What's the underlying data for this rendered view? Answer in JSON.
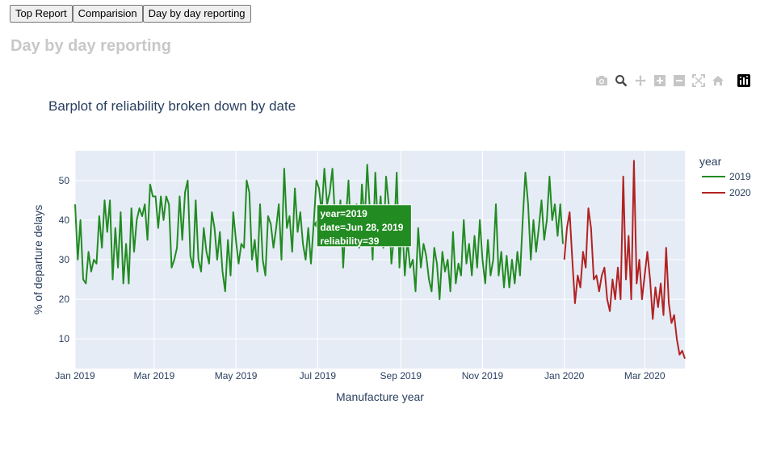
{
  "tabs": [
    {
      "label": "Top Report"
    },
    {
      "label": "Comparision"
    },
    {
      "label": "Day by day reporting"
    }
  ],
  "page_title": "Day by day reporting",
  "modebar": [
    {
      "icon": "camera-icon",
      "title": "Download plot as a png"
    },
    {
      "icon": "zoom-icon",
      "title": "Zoom"
    },
    {
      "icon": "pan-icon",
      "title": "Pan"
    },
    {
      "icon": "zoom-in-icon",
      "title": "Zoom in"
    },
    {
      "icon": "zoom-out-icon",
      "title": "Zoom out"
    },
    {
      "icon": "autoscale-icon",
      "title": "Autoscale"
    },
    {
      "icon": "reset-axes-icon",
      "title": "Reset axes"
    },
    {
      "icon": "plotly-logo-icon",
      "title": "Produced with Plotly"
    }
  ],
  "colors": {
    "plot_bg": "#e5ecf6",
    "grid": "#ffffff",
    "text": "#2a3f5f",
    "series_2019": "#228b22",
    "series_2020": "#b22222"
  },
  "chart_data": {
    "type": "line",
    "title": "Barplot of reliability broken down by date",
    "xlabel": "Manufacture year",
    "ylabel": "% of departure delays",
    "xlim": [
      "2019-01-01",
      "2020-03-31"
    ],
    "ylim": [
      2.5,
      57.5
    ],
    "x_ticks": [
      "Jan 2019",
      "Mar 2019",
      "May 2019",
      "Jul 2019",
      "Sep 2019",
      "Nov 2019",
      "Jan 2020",
      "Mar 2020"
    ],
    "y_ticks": [
      10,
      20,
      30,
      40,
      50
    ],
    "grid": true,
    "legend": {
      "title": "year",
      "position": "right"
    },
    "series": [
      {
        "name": "2019",
        "color": "#228b22",
        "points": [
          [
            "2019-01-01",
            44
          ],
          [
            "2019-01-03",
            30
          ],
          [
            "2019-01-05",
            40
          ],
          [
            "2019-01-07",
            25
          ],
          [
            "2019-01-09",
            24
          ],
          [
            "2019-01-11",
            32
          ],
          [
            "2019-01-13",
            27
          ],
          [
            "2019-01-15",
            30
          ],
          [
            "2019-01-17",
            29
          ],
          [
            "2019-01-19",
            41
          ],
          [
            "2019-01-21",
            33
          ],
          [
            "2019-01-23",
            45
          ],
          [
            "2019-01-25",
            37
          ],
          [
            "2019-01-27",
            45
          ],
          [
            "2019-01-29",
            25
          ],
          [
            "2019-01-31",
            38
          ],
          [
            "2019-02-02",
            28
          ],
          [
            "2019-02-04",
            42
          ],
          [
            "2019-02-06",
            24
          ],
          [
            "2019-02-08",
            34
          ],
          [
            "2019-02-10",
            24
          ],
          [
            "2019-02-12",
            43
          ],
          [
            "2019-02-14",
            32
          ],
          [
            "2019-02-16",
            40
          ],
          [
            "2019-02-18",
            43
          ],
          [
            "2019-02-20",
            41
          ],
          [
            "2019-02-22",
            44
          ],
          [
            "2019-02-24",
            35
          ],
          [
            "2019-02-26",
            49
          ],
          [
            "2019-02-28",
            46
          ],
          [
            "2019-03-02",
            46
          ],
          [
            "2019-03-04",
            38
          ],
          [
            "2019-03-06",
            46
          ],
          [
            "2019-03-08",
            40
          ],
          [
            "2019-03-10",
            46
          ],
          [
            "2019-03-12",
            44
          ],
          [
            "2019-03-14",
            28
          ],
          [
            "2019-03-16",
            30
          ],
          [
            "2019-03-18",
            33
          ],
          [
            "2019-03-20",
            46
          ],
          [
            "2019-03-22",
            35
          ],
          [
            "2019-03-24",
            47
          ],
          [
            "2019-03-26",
            50
          ],
          [
            "2019-03-28",
            31
          ],
          [
            "2019-03-30",
            28
          ],
          [
            "2019-04-01",
            45
          ],
          [
            "2019-04-03",
            30
          ],
          [
            "2019-04-05",
            27
          ],
          [
            "2019-04-07",
            38
          ],
          [
            "2019-04-09",
            32
          ],
          [
            "2019-04-11",
            29
          ],
          [
            "2019-04-13",
            42
          ],
          [
            "2019-04-15",
            38
          ],
          [
            "2019-04-17",
            30
          ],
          [
            "2019-04-19",
            37
          ],
          [
            "2019-04-21",
            27
          ],
          [
            "2019-04-23",
            22
          ],
          [
            "2019-04-25",
            35
          ],
          [
            "2019-04-27",
            26
          ],
          [
            "2019-04-29",
            42
          ],
          [
            "2019-05-01",
            35
          ],
          [
            "2019-05-03",
            29
          ],
          [
            "2019-05-05",
            34
          ],
          [
            "2019-05-07",
            33
          ],
          [
            "2019-05-09",
            50
          ],
          [
            "2019-05-11",
            47
          ],
          [
            "2019-05-13",
            30
          ],
          [
            "2019-05-15",
            35
          ],
          [
            "2019-05-17",
            27
          ],
          [
            "2019-05-19",
            44
          ],
          [
            "2019-05-21",
            30
          ],
          [
            "2019-05-23",
            26
          ],
          [
            "2019-05-25",
            41
          ],
          [
            "2019-05-27",
            39
          ],
          [
            "2019-05-29",
            33
          ],
          [
            "2019-05-31",
            38
          ],
          [
            "2019-06-02",
            44
          ],
          [
            "2019-06-04",
            30
          ],
          [
            "2019-06-06",
            53
          ],
          [
            "2019-06-08",
            38
          ],
          [
            "2019-06-10",
            41
          ],
          [
            "2019-06-12",
            32
          ],
          [
            "2019-06-14",
            48
          ],
          [
            "2019-06-16",
            37
          ],
          [
            "2019-06-18",
            42
          ],
          [
            "2019-06-20",
            34
          ],
          [
            "2019-06-22",
            30
          ],
          [
            "2019-06-24",
            38
          ],
          [
            "2019-06-26",
            29
          ],
          [
            "2019-06-28",
            39
          ],
          [
            "2019-06-30",
            50
          ],
          [
            "2019-07-02",
            48
          ],
          [
            "2019-07-04",
            42
          ],
          [
            "2019-07-06",
            53
          ],
          [
            "2019-07-08",
            44
          ],
          [
            "2019-07-10",
            47
          ],
          [
            "2019-07-12",
            53
          ],
          [
            "2019-07-14",
            40
          ],
          [
            "2019-07-16",
            36
          ],
          [
            "2019-07-18",
            45
          ],
          [
            "2019-07-20",
            28
          ],
          [
            "2019-07-22",
            40
          ],
          [
            "2019-07-24",
            50
          ],
          [
            "2019-07-26",
            35
          ],
          [
            "2019-07-28",
            38
          ],
          [
            "2019-07-30",
            44
          ],
          [
            "2019-08-01",
            33
          ],
          [
            "2019-08-03",
            49
          ],
          [
            "2019-08-05",
            39
          ],
          [
            "2019-08-07",
            54
          ],
          [
            "2019-08-09",
            42
          ],
          [
            "2019-08-11",
            30
          ],
          [
            "2019-08-13",
            52
          ],
          [
            "2019-08-15",
            38
          ],
          [
            "2019-08-17",
            46
          ],
          [
            "2019-08-19",
            33
          ],
          [
            "2019-08-21",
            51
          ],
          [
            "2019-08-23",
            44
          ],
          [
            "2019-08-25",
            29
          ],
          [
            "2019-08-27",
            36
          ],
          [
            "2019-08-29",
            52
          ],
          [
            "2019-08-31",
            28
          ],
          [
            "2019-09-02",
            40
          ],
          [
            "2019-09-04",
            26
          ],
          [
            "2019-09-06",
            35
          ],
          [
            "2019-09-08",
            28
          ],
          [
            "2019-09-10",
            30
          ],
          [
            "2019-09-12",
            22
          ],
          [
            "2019-09-14",
            38
          ],
          [
            "2019-09-16",
            28
          ],
          [
            "2019-09-18",
            34
          ],
          [
            "2019-09-20",
            31
          ],
          [
            "2019-09-22",
            25
          ],
          [
            "2019-09-24",
            22
          ],
          [
            "2019-09-26",
            33
          ],
          [
            "2019-09-28",
            29
          ],
          [
            "2019-09-30",
            20
          ],
          [
            "2019-10-02",
            32
          ],
          [
            "2019-10-04",
            27
          ],
          [
            "2019-10-06",
            30
          ],
          [
            "2019-10-08",
            22
          ],
          [
            "2019-10-10",
            37
          ],
          [
            "2019-10-12",
            24
          ],
          [
            "2019-10-14",
            29
          ],
          [
            "2019-10-16",
            26
          ],
          [
            "2019-10-18",
            40
          ],
          [
            "2019-10-20",
            29
          ],
          [
            "2019-10-22",
            34
          ],
          [
            "2019-10-24",
            26
          ],
          [
            "2019-10-26",
            36
          ],
          [
            "2019-10-28",
            28
          ],
          [
            "2019-10-30",
            40
          ],
          [
            "2019-11-01",
            30
          ],
          [
            "2019-11-03",
            24
          ],
          [
            "2019-11-05",
            35
          ],
          [
            "2019-11-07",
            26
          ],
          [
            "2019-11-09",
            30
          ],
          [
            "2019-11-11",
            44
          ],
          [
            "2019-11-13",
            26
          ],
          [
            "2019-11-15",
            32
          ],
          [
            "2019-11-17",
            23
          ],
          [
            "2019-11-19",
            31
          ],
          [
            "2019-11-21",
            23
          ],
          [
            "2019-11-23",
            30
          ],
          [
            "2019-11-25",
            24
          ],
          [
            "2019-11-27",
            32
          ],
          [
            "2019-11-29",
            26
          ],
          [
            "2019-12-01",
            40
          ],
          [
            "2019-12-03",
            52
          ],
          [
            "2019-12-05",
            44
          ],
          [
            "2019-12-07",
            30
          ],
          [
            "2019-12-09",
            40
          ],
          [
            "2019-12-11",
            32
          ],
          [
            "2019-12-13",
            38
          ],
          [
            "2019-12-15",
            45
          ],
          [
            "2019-12-17",
            35
          ],
          [
            "2019-12-19",
            40
          ],
          [
            "2019-12-21",
            51
          ],
          [
            "2019-12-23",
            40
          ],
          [
            "2019-12-25",
            44
          ],
          [
            "2019-12-27",
            36
          ],
          [
            "2019-12-29",
            44
          ],
          [
            "2019-12-31",
            34
          ]
        ]
      },
      {
        "name": "2020",
        "color": "#b22222",
        "points": [
          [
            "2020-01-01",
            30
          ],
          [
            "2020-01-03",
            38
          ],
          [
            "2020-01-05",
            42
          ],
          [
            "2020-01-07",
            30
          ],
          [
            "2020-01-09",
            19
          ],
          [
            "2020-01-11",
            26
          ],
          [
            "2020-01-13",
            23
          ],
          [
            "2020-01-15",
            32
          ],
          [
            "2020-01-17",
            28
          ],
          [
            "2020-01-19",
            43
          ],
          [
            "2020-01-21",
            38
          ],
          [
            "2020-01-23",
            25
          ],
          [
            "2020-01-25",
            26
          ],
          [
            "2020-01-27",
            22
          ],
          [
            "2020-01-29",
            26
          ],
          [
            "2020-01-31",
            28
          ],
          [
            "2020-02-02",
            20
          ],
          [
            "2020-02-04",
            17
          ],
          [
            "2020-02-06",
            25
          ],
          [
            "2020-02-08",
            20
          ],
          [
            "2020-02-10",
            28
          ],
          [
            "2020-02-12",
            20
          ],
          [
            "2020-02-14",
            51
          ],
          [
            "2020-02-16",
            25
          ],
          [
            "2020-02-18",
            36
          ],
          [
            "2020-02-20",
            20
          ],
          [
            "2020-02-22",
            55
          ],
          [
            "2020-02-24",
            24
          ],
          [
            "2020-02-26",
            30
          ],
          [
            "2020-02-28",
            20
          ],
          [
            "2020-03-01",
            26
          ],
          [
            "2020-03-03",
            32
          ],
          [
            "2020-03-05",
            25
          ],
          [
            "2020-03-07",
            15
          ],
          [
            "2020-03-09",
            23
          ],
          [
            "2020-03-11",
            18
          ],
          [
            "2020-03-13",
            24
          ],
          [
            "2020-03-15",
            16
          ],
          [
            "2020-03-17",
            33
          ],
          [
            "2020-03-19",
            19
          ],
          [
            "2020-03-21",
            14
          ],
          [
            "2020-03-23",
            16
          ],
          [
            "2020-03-25",
            10
          ],
          [
            "2020-03-27",
            6
          ],
          [
            "2020-03-29",
            7
          ],
          [
            "2020-03-31",
            5
          ]
        ]
      }
    ],
    "tooltip": {
      "lines": [
        "year=2019",
        "date=Jun 28, 2019",
        "reliability=39"
      ],
      "anchor": [
        "2019-06-28",
        39
      ]
    }
  }
}
